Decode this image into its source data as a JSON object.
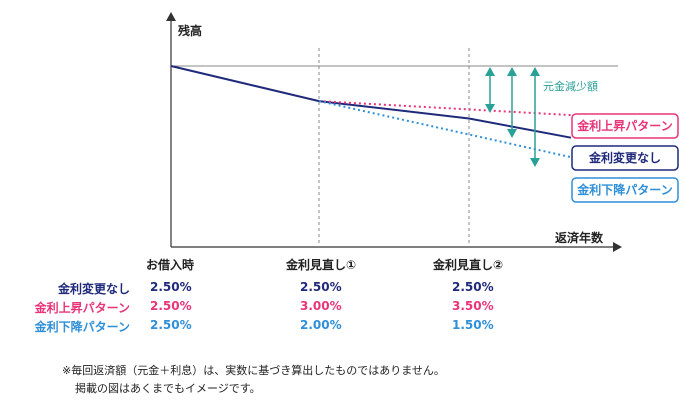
{
  "chart_data": {
    "type": "line",
    "ylabel": "残高",
    "xlabel": "返済年数",
    "annotation": "元金減少額",
    "x_markers": [
      "お借入時",
      "金利見直し①",
      "金利見直し②"
    ],
    "series": [
      {
        "name": "金利変更なし",
        "color": "#1f2a7a",
        "style": "solid",
        "points": [
          [
            0,
            100
          ],
          [
            1,
            80.6
          ],
          [
            2,
            71
          ],
          [
            3,
            60.4
          ]
        ]
      },
      {
        "name": "金利上昇パターン",
        "color": "#e8357a",
        "style": "dotted",
        "points": [
          [
            1,
            80.6
          ],
          [
            3,
            72.9
          ]
        ]
      },
      {
        "name": "金利下降パターン",
        "color": "#2f8fd8",
        "style": "dotted",
        "points": [
          [
            1,
            80.6
          ],
          [
            3,
            49.6
          ]
        ]
      }
    ]
  },
  "table": {
    "columns": [
      "お借入時",
      "金利見直し①",
      "金利見直し②"
    ],
    "rows": [
      {
        "label": "金利変更なし",
        "color": "#1f2a7a",
        "values": [
          "2.50%",
          "2.50%",
          "2.50%"
        ]
      },
      {
        "label": "金利上昇パターン",
        "color": "#e8357a",
        "values": [
          "2.50%",
          "3.00%",
          "3.50%"
        ]
      },
      {
        "label": "金利下降パターン",
        "color": "#2f8fd8",
        "values": [
          "2.50%",
          "2.00%",
          "1.50%"
        ]
      }
    ]
  },
  "notes": [
    "※毎回返済額（元金＋利息）は、実数に基づき算出したものではありません。",
    "掲載の図はあくまでもイメージです。"
  ],
  "colors": {
    "annotation": "#2aa197",
    "axis": "#333333",
    "guide": "#888888",
    "reference": "#8a8a8a"
  }
}
